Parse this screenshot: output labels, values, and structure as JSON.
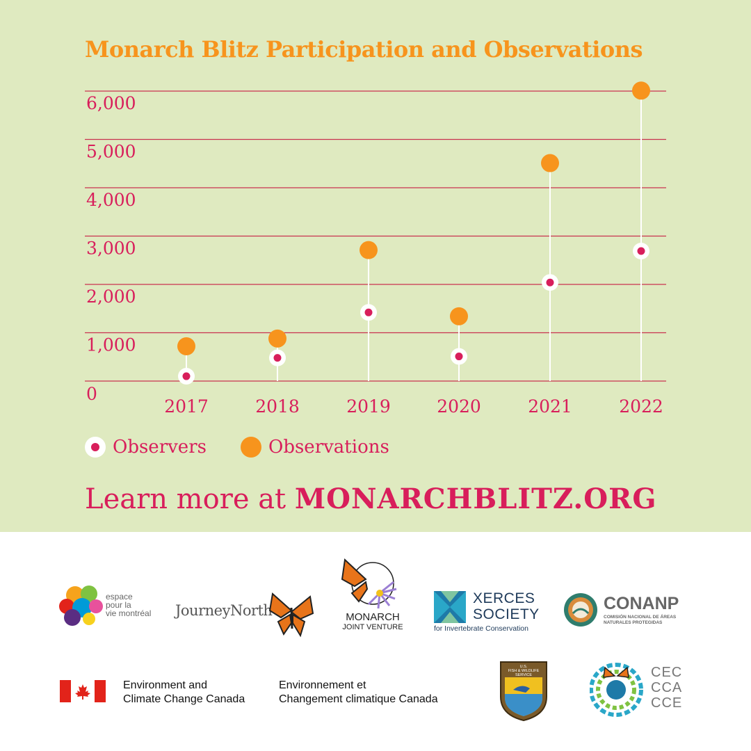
{
  "title": "Monarch Blitz Participation and Observations",
  "chart_data": {
    "type": "lollipop",
    "categories": [
      "2017",
      "2018",
      "2019",
      "2020",
      "2021",
      "2022"
    ],
    "series": [
      {
        "name": "Observers",
        "values": [
          100,
          480,
          1420,
          510,
          2040,
          2690
        ],
        "color": "#d81e5b"
      },
      {
        "name": "Observations",
        "values": [
          720,
          880,
          2710,
          1340,
          4510,
          6010
        ],
        "color": "#f7941d"
      }
    ],
    "y_ticks": [
      "0",
      "1,000",
      "2,000",
      "3,000",
      "4,000",
      "5,000",
      "6,000"
    ],
    "ylim": [
      0,
      6000
    ],
    "grid": true,
    "legend_position": "bottom-left",
    "grid_color": "#c9334f"
  },
  "legend": {
    "observers": "Observers",
    "observations": "Observations"
  },
  "cta": {
    "prefix": "Learn more at ",
    "url": "MONARCHBLITZ.ORG"
  },
  "logos": {
    "espace": {
      "line1": "espace",
      "line2": "pour la",
      "line3": "vie montréal"
    },
    "journey": "JourneyNorth",
    "mjv": {
      "line1": "MONARCH",
      "line2": "JOINT VENTURE"
    },
    "xerces": {
      "line1": "XERCES",
      "line2": "SOCIETY",
      "line3": "for Invertebrate Conservation"
    },
    "conanp": {
      "name": "CONANP",
      "sub1": "COMISIÓN NACIONAL DE ÁREAS",
      "sub2": "NATURALES PROTEGIDAS"
    },
    "eccc": {
      "en1": "Environment and",
      "en2": "Climate Change Canada",
      "fr1": "Environnement et",
      "fr2": "Changement climatique Canada"
    },
    "usfws": {
      "line1": "U.S.",
      "line2": "FISH & WILDLIFE",
      "line3": "SERVICE"
    },
    "cec": {
      "line1": "CEC",
      "line2": "CCA",
      "line3": "CCE"
    }
  }
}
